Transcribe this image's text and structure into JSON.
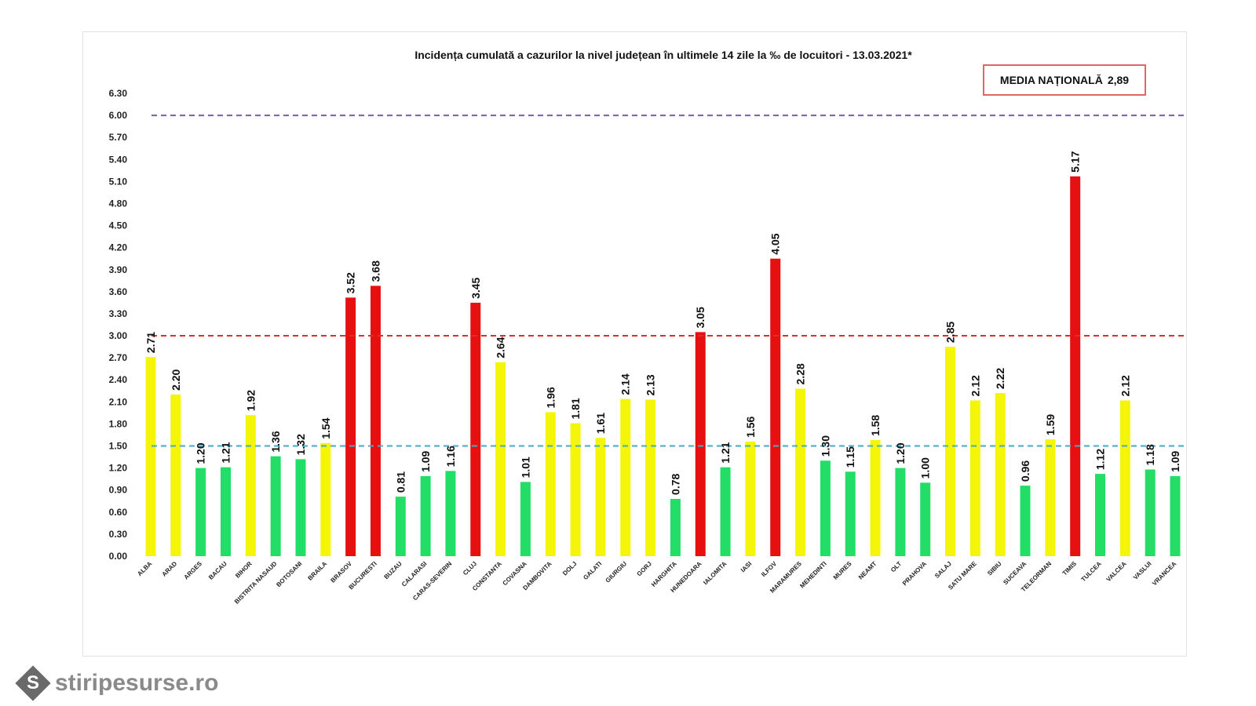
{
  "chart_data": {
    "type": "bar",
    "title": "Incidența cumulată a cazurilor la nivel județean în ultimele 14 zile la ‰ de locuitori - 13.03.2021*",
    "xlabel": "",
    "ylabel": "",
    "ylim": [
      0,
      6.3
    ],
    "yticks": [
      "0.00",
      "0.30",
      "0.60",
      "0.90",
      "1.20",
      "1.50",
      "1.80",
      "2.10",
      "2.40",
      "2.70",
      "3.00",
      "3.30",
      "3.60",
      "3.90",
      "4.20",
      "4.50",
      "4.80",
      "5.10",
      "5.40",
      "5.70",
      "6.00",
      "6.30"
    ],
    "grid": false,
    "categories": [
      "ALBA",
      "ARAD",
      "ARGES",
      "BACAU",
      "BIHOR",
      "BISTRITA NASAUD",
      "BOTOSANI",
      "BRAILA",
      "BRASOV",
      "BUCURESTI",
      "BUZAU",
      "CALARASI",
      "CARAS-SEVERIN",
      "CLUJ",
      "CONSTANTA",
      "COVASNA",
      "DAMBOVITA",
      "DOLJ",
      "GALATI",
      "GIURGIU",
      "GORJ",
      "HARGHITA",
      "HUNEDOARA",
      "IALOMITA",
      "IASI",
      "ILFOV",
      "MARAMURES",
      "MEHEDINTI",
      "MURES",
      "NEAMT",
      "OLT",
      "PRAHOVA",
      "SALAJ",
      "SATU MARE",
      "SIBIU",
      "SUCEAVA",
      "TELEORMAN",
      "TIMIS",
      "TULCEA",
      "VALCEA",
      "VASLUI",
      "VRANCEA"
    ],
    "values": [
      2.71,
      2.2,
      1.2,
      1.21,
      1.92,
      1.36,
      1.32,
      1.54,
      3.52,
      3.68,
      0.81,
      1.09,
      1.16,
      3.45,
      2.64,
      1.01,
      1.96,
      1.81,
      1.61,
      2.14,
      2.13,
      0.78,
      3.05,
      1.21,
      1.56,
      4.05,
      2.28,
      1.3,
      1.15,
      1.58,
      1.2,
      1.0,
      2.85,
      2.12,
      2.22,
      0.96,
      1.59,
      5.17,
      1.12,
      2.12,
      1.18,
      1.09
    ],
    "thresholds": [
      {
        "value": 1.5,
        "color": "#4aa9c4"
      },
      {
        "value": 3.0,
        "color": "#d9302c"
      },
      {
        "value": 6.0,
        "color": "#7a5fa8"
      }
    ],
    "colors": {
      "low": "#22dd66",
      "mid": "#f5f50a",
      "high": "#e61010"
    }
  },
  "media": {
    "label": "MEDIA NAȚIONALĂ",
    "value": "2,89"
  },
  "watermark": {
    "text": "stiripesurse.ro",
    "logo": "S"
  }
}
